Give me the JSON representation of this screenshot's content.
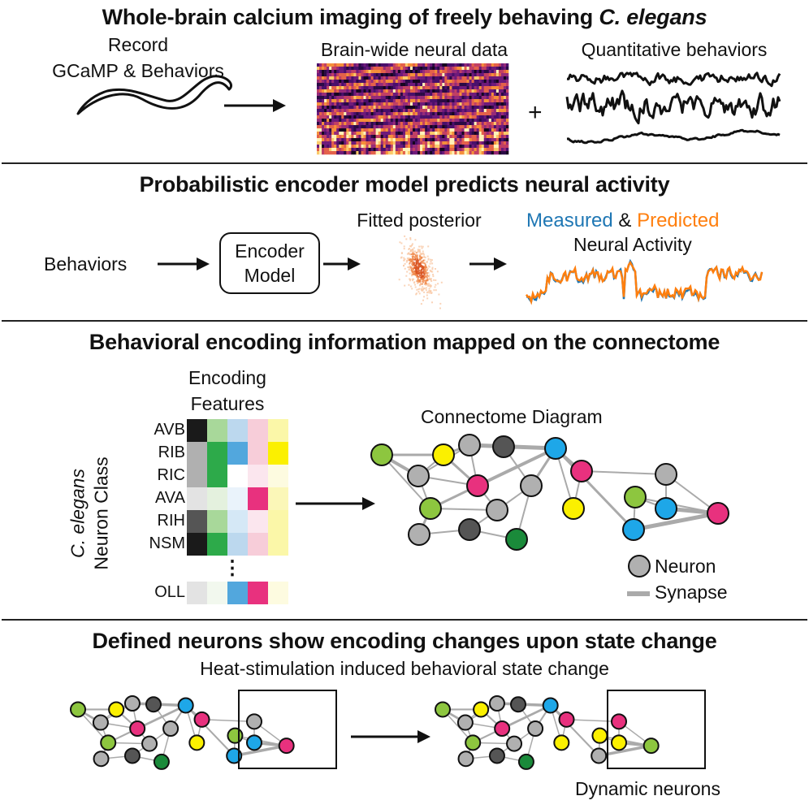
{
  "panel1": {
    "title_main": "Whole-brain calcium imaging of freely behaving ",
    "title_species": "C. elegans",
    "record_line1": "Record",
    "record_line2": "GCaMP & Behaviors",
    "neural_label": "Brain-wide neural data",
    "behaviors_label": "Quantitative behaviors",
    "plus": "+"
  },
  "panel2": {
    "title": "Probabilistic encoder model predicts neural activity",
    "behaviors": "Behaviors",
    "encoder_line1": "Encoder",
    "encoder_line2": "Model",
    "posterior_label": "Fitted posterior",
    "measured": "Measured",
    "amp": " & ",
    "predicted": "Predicted",
    "neural_activity": "Neural Activity",
    "colors": {
      "measured": "#1f77b4",
      "predicted": "#ff7f0e"
    }
  },
  "panel3": {
    "title": "Behavioral encoding information mapped on the connectome",
    "features_line1": "Encoding",
    "features_line2": "Features",
    "axis_species": "C. elegans",
    "axis_class": "Neuron Class",
    "neurons": [
      "AVB",
      "RIB",
      "RIC",
      "AVA",
      "RIH",
      "NSM",
      "OLL"
    ],
    "ellipsis": "⋮",
    "heatmap": [
      [
        "#1a1a1a",
        "#a8d89a",
        "#bcd8ee",
        "#f7cdd9",
        "#fbf7a8"
      ],
      [
        "#b0b0b0",
        "#2daa4a",
        "#52a7dd",
        "#f7cdd9",
        "#fbf000"
      ],
      [
        "#b0b0b0",
        "#2daa4a",
        "#ffffff",
        "#fbe6ee",
        "#fdfbe0"
      ],
      [
        "#e3e3e3",
        "#e4f1de",
        "#eaf3fb",
        "#e8317e",
        "#fbf7b8"
      ],
      [
        "#555555",
        "#a8d89a",
        "#d5e8f6",
        "#fbe6ee",
        "#fbf7a8"
      ],
      [
        "#1a1a1a",
        "#2daa4a",
        "#bcd8ee",
        "#f7cdd9",
        "#fbf7a8"
      ],
      [
        "#e3e3e3",
        "#f2f8ee",
        "#52a7dd",
        "#e8317e",
        "#fdfbe0"
      ]
    ],
    "connectome_label": "Connectome Diagram",
    "legend_neuron": "Neuron",
    "legend_synapse": "Synapse"
  },
  "panel4": {
    "title": "Defined neurons show encoding changes upon state change",
    "subtitle": "Heat-stimulation induced behavioral state change",
    "dynamic_label": "Dynamic neurons",
    "after_box_colors": [
      "#e8317e",
      "#fbf000",
      "#fbf000",
      "#8dc63f",
      "#b0b0b0"
    ]
  },
  "node_colors": {
    "grey": "#b0b0b0",
    "dark": "#555555",
    "green": "#8dc63f",
    "dkgreen": "#1a8a3a",
    "yellow": "#fbf000",
    "cyan": "#1ea7e8",
    "magenta": "#e8317e"
  }
}
